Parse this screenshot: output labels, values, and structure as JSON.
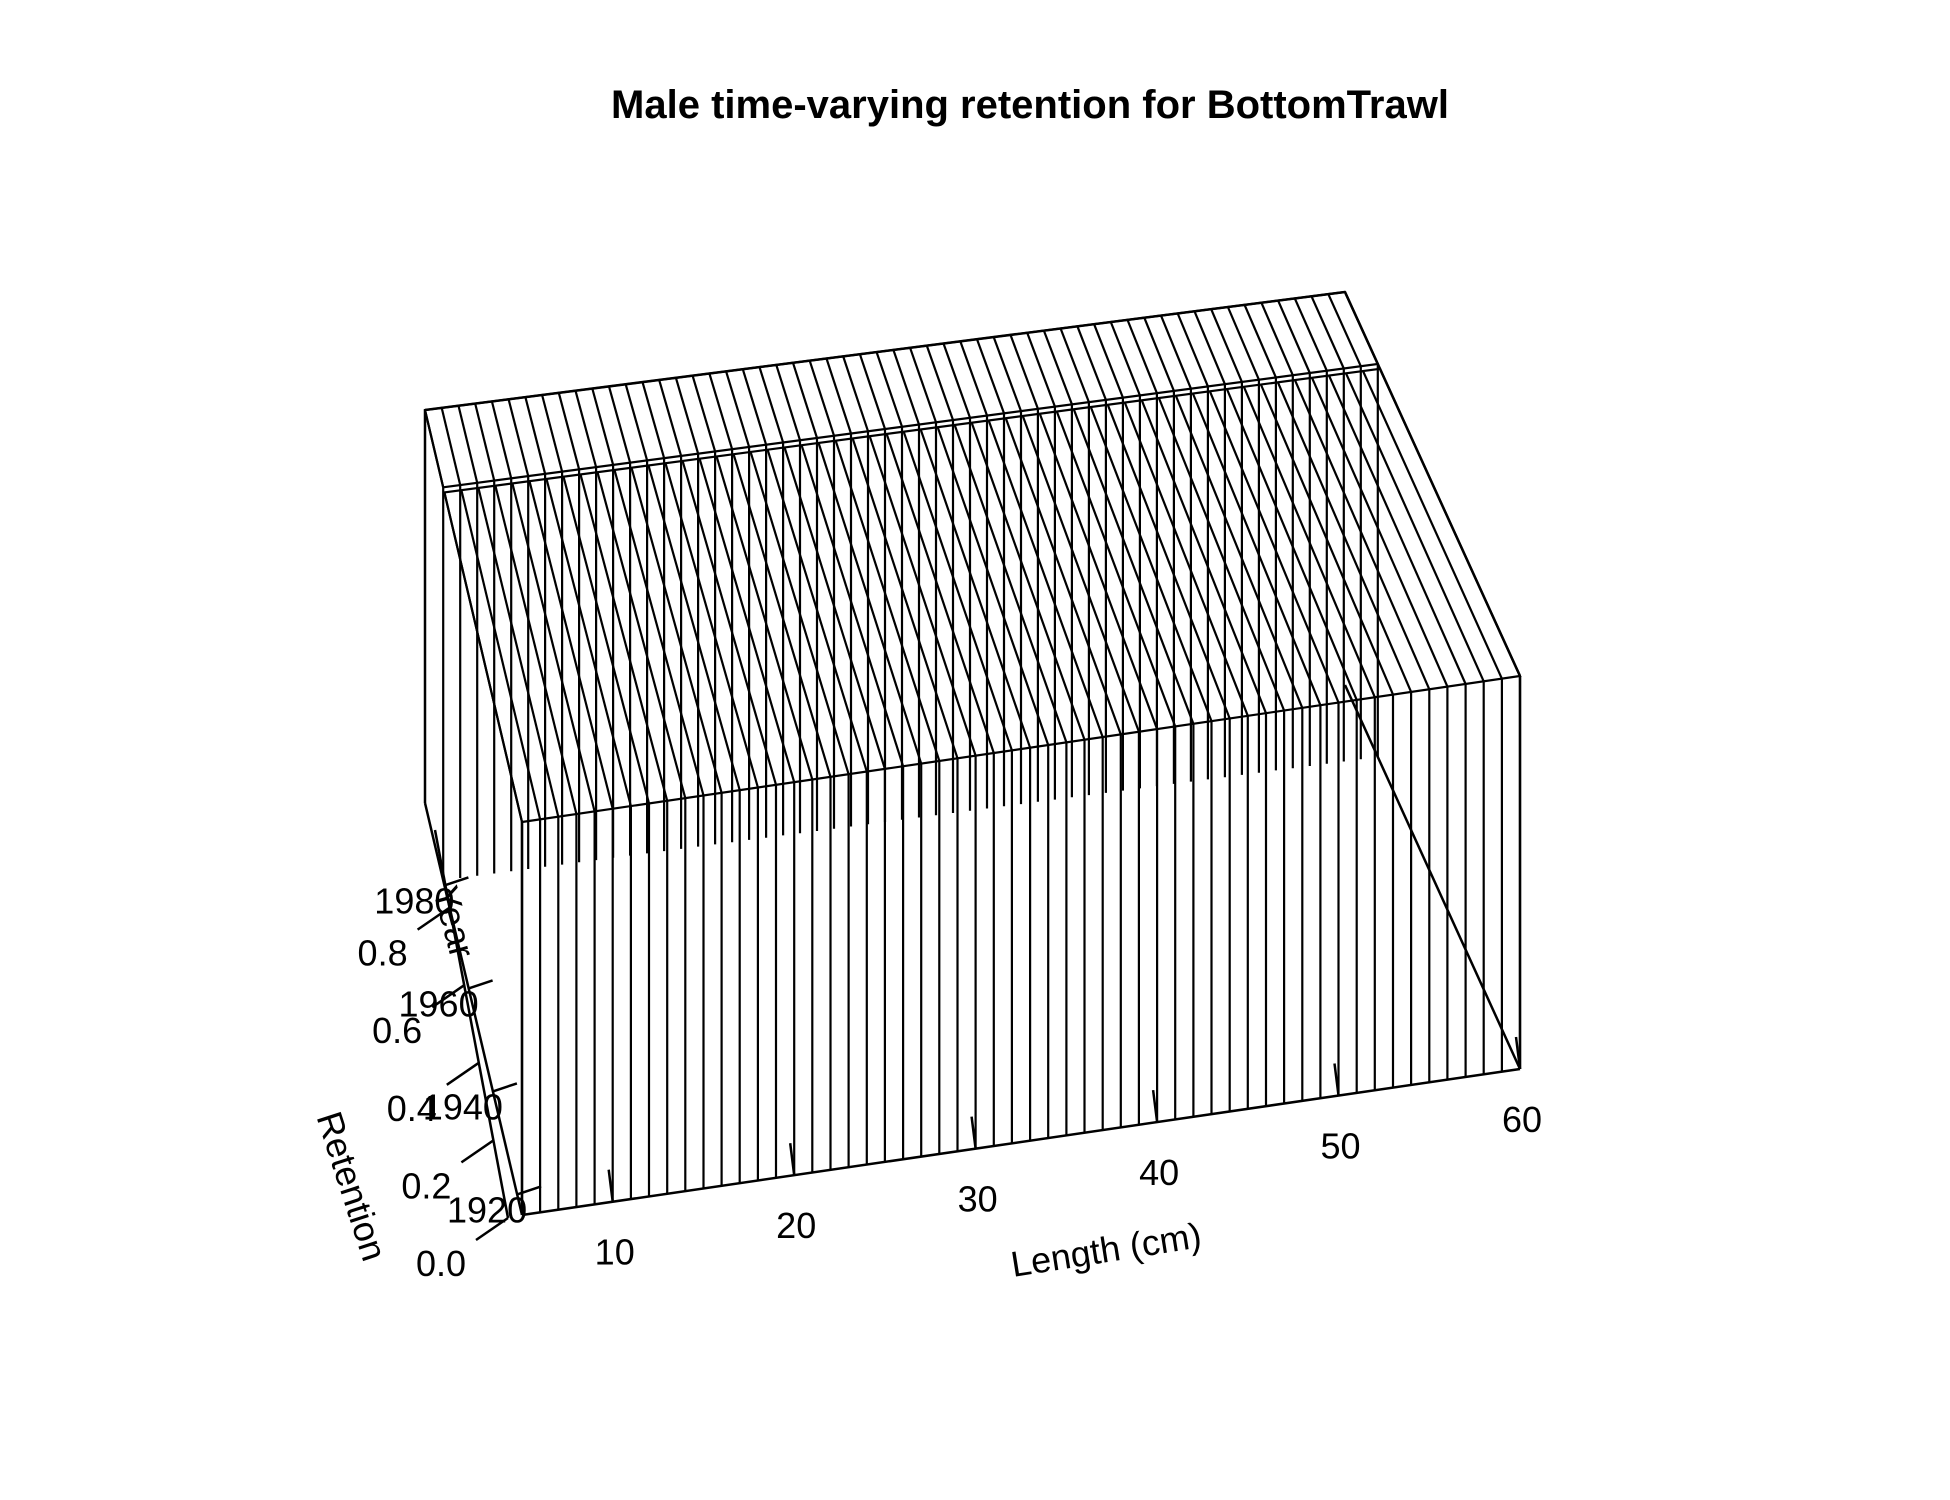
{
  "chart_data": {
    "type": "surface-3d",
    "title": "Male time-varying retention for BottomTrawl",
    "xlabel": "Length (cm)",
    "ylabel": "Year",
    "zlabel": "Retention",
    "x_ticks": [
      10,
      20,
      30,
      40,
      50,
      60
    ],
    "y_ticks": [
      1920,
      1940,
      1960,
      1980
    ],
    "z_ticks": [
      0.0,
      0.2,
      0.4,
      0.6,
      0.8
    ],
    "xlim": [
      5,
      60
    ],
    "ylim": [
      1916,
      1996
    ],
    "zlim": [
      0,
      1
    ],
    "periods": [
      {
        "years": [
          1916,
          1980
        ],
        "retention": 1.0
      },
      {
        "years": [
          1981,
          1996
        ],
        "retention": 1.0
      }
    ],
    "length_bins": [
      6,
      7,
      8,
      9,
      10,
      11,
      12,
      13,
      14,
      15,
      16,
      17,
      18,
      19,
      20,
      21,
      22,
      23,
      24,
      25,
      26,
      27,
      28,
      29,
      30,
      31,
      32,
      33,
      34,
      35,
      36,
      37,
      38,
      39,
      40,
      41,
      42,
      43,
      44,
      45,
      46,
      47,
      48,
      49,
      50,
      51,
      52,
      53,
      54,
      55,
      56,
      57,
      58,
      59,
      60
    ],
    "grid": false
  }
}
